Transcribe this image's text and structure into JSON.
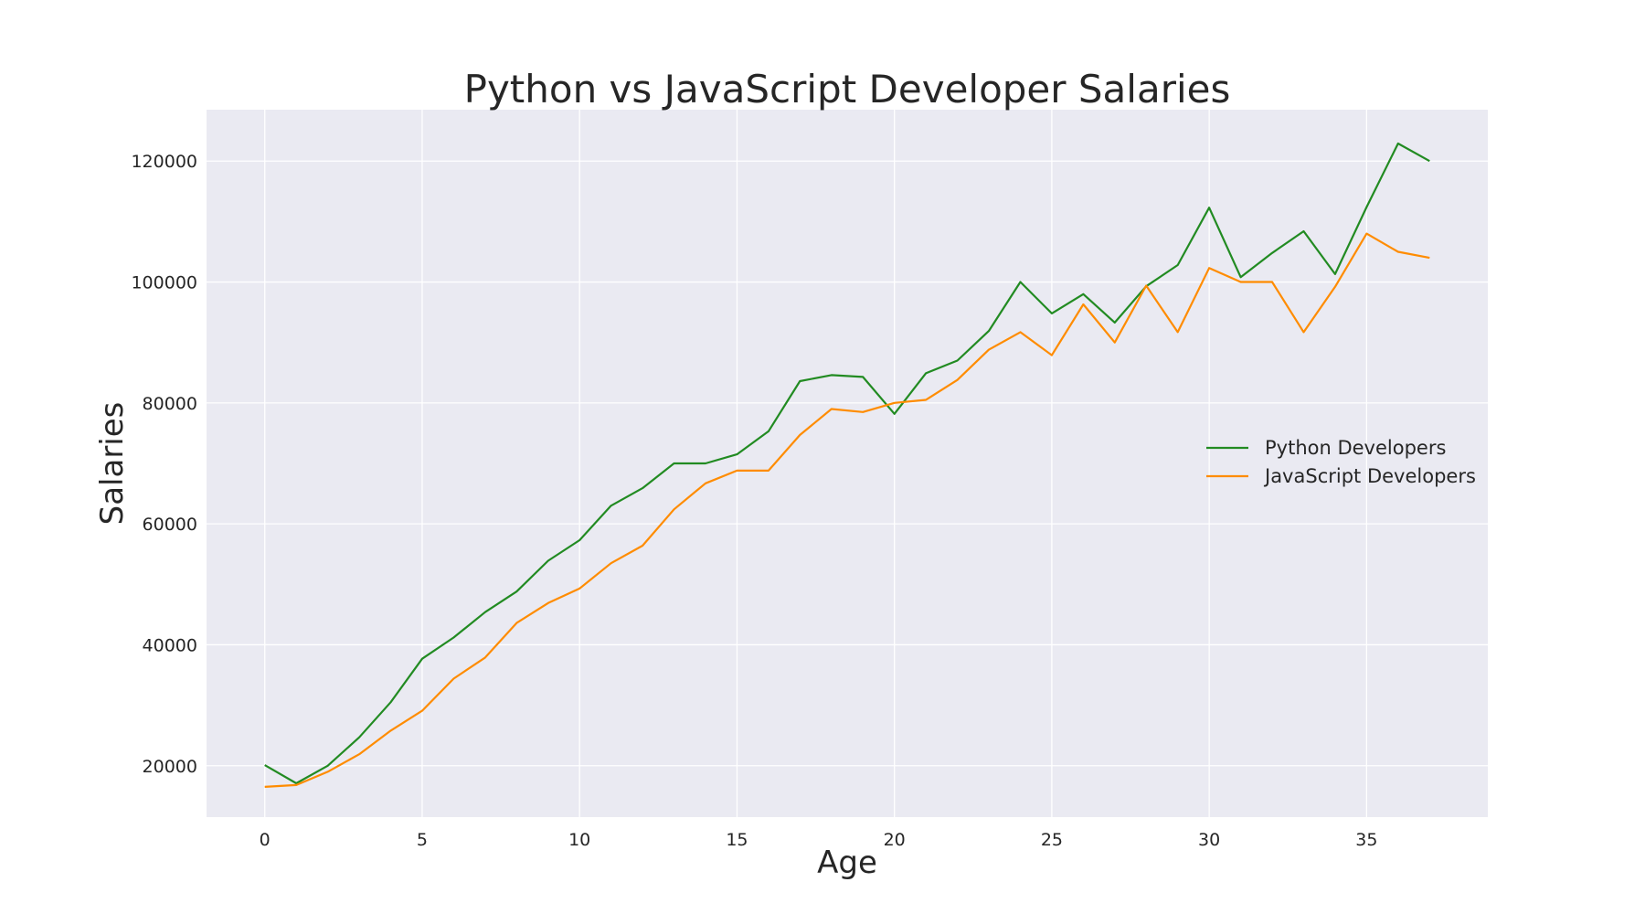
{
  "chart_data": {
    "type": "line",
    "title": "Python vs JavaScript Developer Salaries",
    "xlabel": "Age",
    "ylabel": "Salaries",
    "xlim": [
      -1.85,
      38.85
    ],
    "ylim": [
      11500,
      128500
    ],
    "xticks": [
      0,
      5,
      10,
      15,
      20,
      25,
      30,
      35
    ],
    "yticks": [
      20000,
      40000,
      60000,
      80000,
      100000,
      120000
    ],
    "grid": true,
    "legend_position": "center-right",
    "x": [
      0,
      1,
      2,
      3,
      4,
      5,
      6,
      7,
      8,
      9,
      10,
      11,
      12,
      13,
      14,
      15,
      16,
      17,
      18,
      19,
      20,
      21,
      22,
      23,
      24,
      25,
      26,
      27,
      28,
      29,
      30,
      31,
      32,
      33,
      34,
      35,
      36,
      37
    ],
    "series": [
      {
        "name": "Python Developers",
        "color": "#228b22",
        "values": [
          20100,
          17100,
          20000,
          24700,
          30500,
          37700,
          41200,
          45400,
          48800,
          53900,
          57300,
          63000,
          65900,
          70000,
          70000,
          71500,
          75300,
          83600,
          84600,
          84300,
          78200,
          84900,
          87000,
          91900,
          100000,
          94800,
          98000,
          93300,
          99300,
          102800,
          112300,
          100800,
          104800,
          108400,
          101300,
          112400,
          122900,
          120000
        ]
      },
      {
        "name": "JavaScript Developers",
        "color": "#ff8c00",
        "values": [
          16500,
          16800,
          19000,
          21900,
          25800,
          29100,
          34400,
          37900,
          43600,
          46900,
          49300,
          53500,
          56400,
          62400,
          66700,
          68800,
          68800,
          74700,
          79000,
          78500,
          80000,
          80500,
          83800,
          88800,
          91700,
          87900,
          96300,
          90000,
          99400,
          91700,
          102300,
          100000,
          100000,
          91700,
          99200,
          108000,
          105000,
          104000
        ]
      }
    ]
  }
}
